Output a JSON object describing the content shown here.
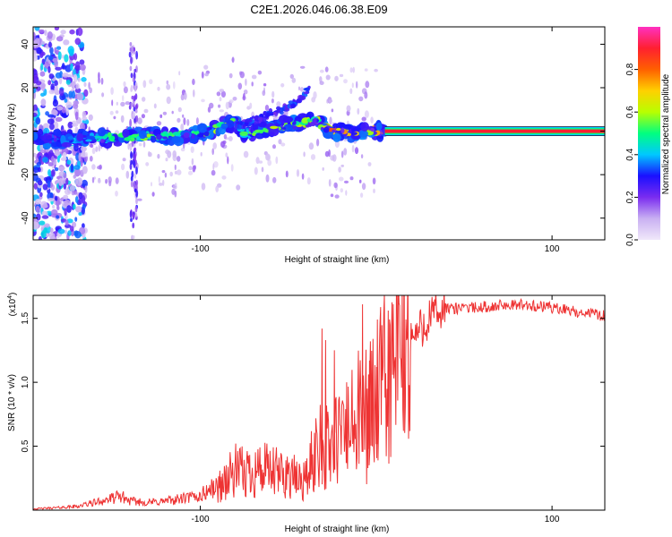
{
  "figure_title": "C2E1.2026.046.06.38.E09",
  "colorbar": {
    "label": "Normalized spectral amplitude",
    "ticks": [
      0.0,
      0.2,
      0.4,
      0.6,
      0.8
    ],
    "tick_labels": [
      "0.0",
      "0.2",
      "0.4",
      "0.6",
      "0.8"
    ],
    "range": [
      0,
      1
    ],
    "stops": [
      "#f0e8fa",
      "#c9b0f2",
      "#7a2cf0",
      "#1a10ff",
      "#00c8ff",
      "#00ff80",
      "#b8ff00",
      "#ffd000",
      "#ff6000",
      "#ff2030",
      "#ff30c0"
    ]
  },
  "chart_data": [
    {
      "type": "heatmap",
      "title": "C2E1.2026.046.06.38.E09",
      "xlabel": "Height of straight line (km)",
      "ylabel": "Frequency (Hz)",
      "xlim": [
        -195,
        130
      ],
      "ylim": [
        -50,
        48
      ],
      "xticks": [
        -100,
        100
      ],
      "xtick_labels": [
        "-100",
        "100"
      ],
      "yticks": [
        -40,
        -20,
        0,
        20,
        40
      ],
      "ytick_labels": [
        "-40",
        "-20",
        "0",
        "20",
        "40"
      ],
      "ridge": {
        "description": "dominant frequency track",
        "x": [
          -195,
          -165,
          -150,
          -130,
          -110,
          -95,
          -85,
          -80,
          -75,
          -65,
          -50,
          -40,
          -33,
          -30,
          -25,
          -15,
          -5,
          5,
          20,
          60,
          100,
          130
        ],
        "y": [
          -4,
          -3,
          -3,
          -2,
          -2,
          0,
          3,
          4,
          -2,
          1,
          3,
          4,
          5,
          2,
          0,
          -1,
          0,
          0,
          0,
          0,
          0,
          0
        ],
        "amplitude": [
          0.3,
          0.4,
          0.5,
          0.55,
          0.5,
          0.55,
          0.6,
          0.6,
          0.5,
          0.55,
          0.6,
          0.55,
          0.6,
          0.75,
          0.8,
          0.75,
          0.7,
          0.7,
          0.82,
          0.82,
          0.82,
          0.82
        ]
      },
      "branch": {
        "description": "upper branch",
        "x": [
          -80,
          -70,
          -60,
          -50,
          -42,
          -38
        ],
        "y": [
          2,
          5,
          8,
          11,
          16,
          20
        ]
      },
      "noise_band": {
        "x": [
          -195,
          -165
        ],
        "y": [
          -50,
          48
        ]
      },
      "stripe": {
        "x": [
          -140,
          -136
        ],
        "y": [
          -50,
          40
        ]
      }
    },
    {
      "type": "line",
      "title": "",
      "xlabel": "Height of straight line (km)",
      "ylabel": "SNR (10 * v/v)",
      "y_scale_label": "(x10",
      "y_scale_exp": "4",
      "xlim": [
        -195,
        130
      ],
      "ylim": [
        0,
        1.68
      ],
      "xticks": [
        -100,
        100
      ],
      "xtick_labels": [
        "-100",
        "100"
      ],
      "yticks": [
        0.5,
        1.0,
        1.5
      ],
      "ytick_labels": [
        "0.5",
        "1.0",
        "1.5"
      ],
      "series": [
        {
          "name": "SNR",
          "color": "#ee3333",
          "x": [
            -195,
            -180,
            -170,
            -160,
            -150,
            -145,
            -140,
            -130,
            -120,
            -110,
            -100,
            -95,
            -90,
            -85,
            -80,
            -75,
            -70,
            -65,
            -60,
            -55,
            -50,
            -45,
            -40,
            -35,
            -31,
            -30,
            -28,
            -25,
            -22,
            -18,
            -15,
            -12,
            -10,
            -8,
            -5,
            0,
            3,
            5,
            10,
            15,
            20,
            25,
            30,
            40,
            50,
            60,
            70,
            80,
            90,
            100,
            110,
            120,
            130
          ],
          "y": [
            0.01,
            0.02,
            0.03,
            0.06,
            0.09,
            0.11,
            0.07,
            0.06,
            0.07,
            0.09,
            0.11,
            0.16,
            0.18,
            0.24,
            0.3,
            0.28,
            0.33,
            0.31,
            0.29,
            0.28,
            0.29,
            0.23,
            0.24,
            0.42,
            0.62,
            0.45,
            0.48,
            0.52,
            0.55,
            0.6,
            0.64,
            0.66,
            0.72,
            0.76,
            0.78,
            0.86,
            0.92,
            1.0,
            1.1,
            1.22,
            1.33,
            1.42,
            1.5,
            1.57,
            1.58,
            1.59,
            1.6,
            1.61,
            1.6,
            1.58,
            1.56,
            1.54,
            1.52
          ]
        }
      ],
      "spikes": [
        {
          "x": -31,
          "y": 1.42
        },
        {
          "x": -29,
          "y": 1.33
        },
        {
          "x": -24,
          "y": 1.25
        },
        {
          "x": -17,
          "y": 1.0
        },
        {
          "x": -8,
          "y": 1.61
        },
        {
          "x": -4,
          "y": 1.17
        },
        {
          "x": 0,
          "y": 1.12
        }
      ]
    }
  ]
}
